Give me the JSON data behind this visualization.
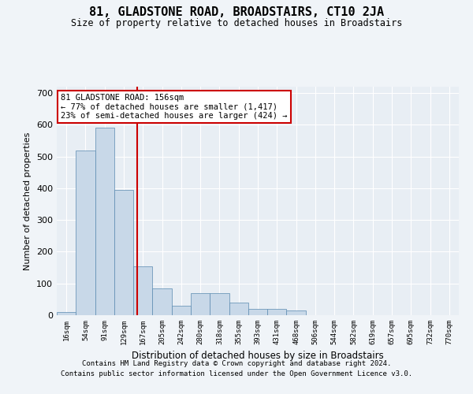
{
  "title": "81, GLADSTONE ROAD, BROADSTAIRS, CT10 2JA",
  "subtitle": "Size of property relative to detached houses in Broadstairs",
  "xlabel": "Distribution of detached houses by size in Broadstairs",
  "ylabel": "Number of detached properties",
  "bin_labels": [
    "16sqm",
    "54sqm",
    "91sqm",
    "129sqm",
    "167sqm",
    "205sqm",
    "242sqm",
    "280sqm",
    "318sqm",
    "355sqm",
    "393sqm",
    "431sqm",
    "468sqm",
    "506sqm",
    "544sqm",
    "582sqm",
    "619sqm",
    "657sqm",
    "695sqm",
    "732sqm",
    "770sqm"
  ],
  "bar_heights": [
    10,
    520,
    590,
    395,
    155,
    85,
    30,
    70,
    70,
    40,
    20,
    20,
    15,
    0,
    0,
    0,
    0,
    0,
    0,
    0,
    0
  ],
  "bar_color": "#c8d8e8",
  "bar_edge_color": "#5a8ab0",
  "property_line_color": "#cc0000",
  "annotation_text": "81 GLADSTONE ROAD: 156sqm\n← 77% of detached houses are smaller (1,417)\n23% of semi-detached houses are larger (424) →",
  "annotation_box_color": "#ffffff",
  "annotation_box_edge": "#cc0000",
  "ylim": [
    0,
    720
  ],
  "yticks": [
    0,
    100,
    200,
    300,
    400,
    500,
    600,
    700
  ],
  "footer_line1": "Contains HM Land Registry data © Crown copyright and database right 2024.",
  "footer_line2": "Contains public sector information licensed under the Open Government Licence v3.0.",
  "background_color": "#f0f4f8",
  "plot_background": "#e8eef4",
  "grid_color": "#ffffff",
  "property_sqm": 156,
  "bin_starts": [
    16,
    54,
    91,
    129,
    167,
    205,
    242,
    280,
    318,
    355,
    393,
    431,
    468,
    506,
    544,
    582,
    619,
    657,
    695,
    732,
    770
  ]
}
